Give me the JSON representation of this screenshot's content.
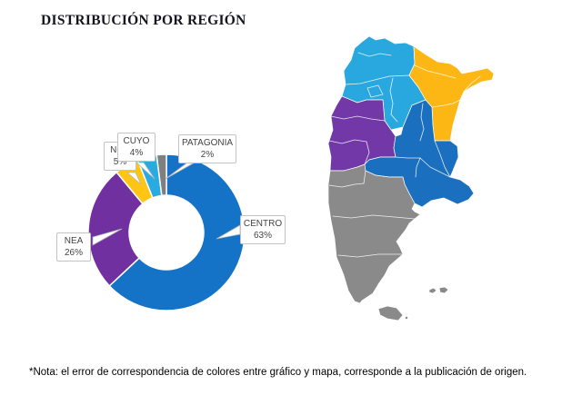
{
  "title": "DISTRIBUCIÓN POR REGIÓN",
  "footnote": "*Nota: el error de correspondencia de colores entre gráfico y mapa, corresponde a la publicación de origen.",
  "chart_data": {
    "type": "pie",
    "subtype": "donut",
    "title": "DISTRIBUCIÓN POR REGIÓN",
    "categories": [
      "CENTRO",
      "NEA",
      "NOA",
      "CUYO",
      "PATAGONIA"
    ],
    "values": [
      63,
      26,
      5,
      4,
      2
    ],
    "colors": [
      "#1473C6",
      "#7030A0",
      "#FFC515",
      "#29ABE2",
      "#7F7F7F"
    ],
    "start_angle_deg": 0,
    "direction": "clockwise",
    "legend_position": "callout-labels",
    "callouts": [
      {
        "label": "NOA",
        "value": "5%"
      },
      {
        "label": "CUYO",
        "value": "4%"
      },
      {
        "label": "PATAGONIA",
        "value": "2%"
      },
      {
        "label": "CENTRO",
        "value": "63%"
      },
      {
        "label": "NEA",
        "value": "26%"
      }
    ]
  },
  "map": {
    "country": "Argentina",
    "regions": [
      {
        "name": "NOA",
        "color": "#29A8E0"
      },
      {
        "name": "NEA",
        "color": "#FDB714"
      },
      {
        "name": "CUYO",
        "color": "#7238A8"
      },
      {
        "name": "CENTRO",
        "color": "#1B6FBF"
      },
      {
        "name": "PATAGONIA",
        "color": "#8A8A8A"
      }
    ],
    "border_color": "#FFFFFF"
  }
}
